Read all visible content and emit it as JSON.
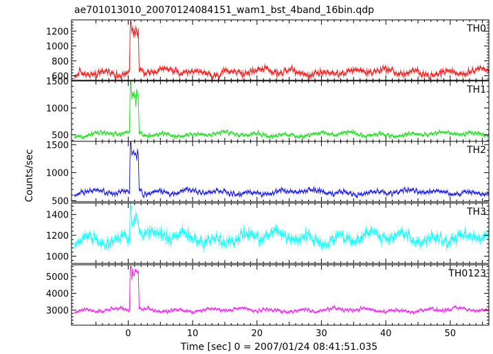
{
  "chart_data": {
    "type": "line",
    "title": "ae701013010_20070124084151_wam1_bst_4band_16bin.qdp",
    "xlabel": "Time [sec] 0 = 2007/01/24 08:41:51.035",
    "ylabel": "Counts/sec",
    "xlim": [
      -8.8,
      56
    ],
    "xticks": [
      0,
      10,
      20,
      30,
      40,
      50
    ],
    "grid": false,
    "legend": "none",
    "burst": {
      "start": 0.3,
      "end": 1.6
    },
    "panels": [
      {
        "name": "TH0",
        "color": "#ff0000",
        "ylim": [
          540,
          1350
        ],
        "yticks": [
          600,
          800,
          1000,
          1200
        ],
        "baseline": 650,
        "noise": 45,
        "peak": 1200,
        "peak_max": 1320
      },
      {
        "name": "TH1",
        "color": "#00e000",
        "ylim": [
          380,
          1500
        ],
        "yticks": [
          500,
          1000,
          1500
        ],
        "baseline": 510,
        "noise": 40,
        "peak": 1250,
        "peak_max": 1480
      },
      {
        "name": "TH2",
        "color": "#0000ff",
        "ylim": [
          480,
          1560
        ],
        "yticks": [
          500,
          1000,
          1500
        ],
        "baseline": 650,
        "noise": 45,
        "peak": 1350,
        "peak_max": 1530
      },
      {
        "name": "TH3",
        "color": "#00ffff",
        "ylim": [
          930,
          1510
        ],
        "yticks": [
          1000,
          1200,
          1400
        ],
        "baseline": 1180,
        "noise": 55,
        "peak": 1380,
        "peak_max": 1480
      },
      {
        "name": "TH0123",
        "color": "#ff00ff",
        "ylim": [
          2100,
          5700
        ],
        "yticks": [
          3000,
          4000,
          5000
        ],
        "baseline": 3000,
        "noise": 110,
        "peak": 5200,
        "peak_max": 5600
      }
    ]
  }
}
